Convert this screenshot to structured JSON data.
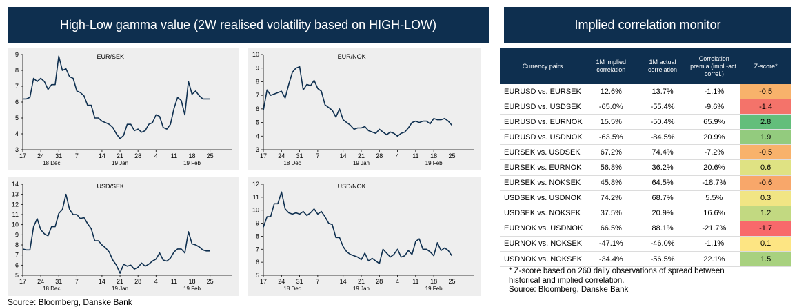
{
  "left_title": "High-Low gamma value (2W realised volatility based on HIGH-LOW)",
  "right_title": "Implied correlation monitor",
  "source_left": "Source: Bloomberg, Danske Bank",
  "footnote_line1": "* Z-score based on 260 daily observations of spread between",
  "footnote_line2": "historical and implied correlation.",
  "footnote_source": "Source: Bloomberg, Danske Bank",
  "table": {
    "headers": [
      "Currency pairs",
      "1M implied correlation",
      "1M actual correlation",
      "Correlation premia (impl.-act. correl.)",
      "Z-score*"
    ],
    "rows": [
      {
        "pair": "EURUSD vs. EURSEK",
        "implied": "12.6%",
        "actual": "13.7%",
        "premia": "-1.1%",
        "z": "-0.5",
        "zcolor": "#f8b26b"
      },
      {
        "pair": "EURUSD vs. USDSEK",
        "implied": "-65.0%",
        "actual": "-55.4%",
        "premia": "-9.6%",
        "z": "-1.4",
        "zcolor": "#f4736a"
      },
      {
        "pair": "EURUSD vs. EURNOK",
        "implied": "15.5%",
        "actual": "-50.4%",
        "premia": "65.9%",
        "z": "2.8",
        "zcolor": "#63be7b"
      },
      {
        "pair": "EURUSD vs. USDNOK",
        "implied": "-63.5%",
        "actual": "-84.5%",
        "premia": "20.9%",
        "z": "1.9",
        "zcolor": "#93cb7e"
      },
      {
        "pair": "EURSEK vs. USDSEK",
        "implied": "67.2%",
        "actual": "74.4%",
        "premia": "-7.2%",
        "z": "-0.5",
        "zcolor": "#f8b26b"
      },
      {
        "pair": "EURSEK vs. EURNOK",
        "implied": "56.8%",
        "actual": "36.2%",
        "premia": "20.6%",
        "z": "0.6",
        "zcolor": "#dfe283"
      },
      {
        "pair": "EURSEK vs. NOKSEK",
        "implied": "45.8%",
        "actual": "64.5%",
        "premia": "-18.7%",
        "z": "-0.6",
        "zcolor": "#f8a76a"
      },
      {
        "pair": "USDSEK vs. USDNOK",
        "implied": "74.2%",
        "actual": "68.7%",
        "premia": "5.5%",
        "z": "0.3",
        "zcolor": "#f1e584"
      },
      {
        "pair": "USDSEK vs. NOKSEK",
        "implied": "37.5%",
        "actual": "20.9%",
        "premia": "16.6%",
        "z": "1.2",
        "zcolor": "#c2d981"
      },
      {
        "pair": "EURNOK vs. USDNOK",
        "implied": "66.5%",
        "actual": "88.1%",
        "premia": "-21.7%",
        "z": "-1.7",
        "zcolor": "#f8696b"
      },
      {
        "pair": "EURNOK vs. NOKSEK",
        "implied": "-47.1%",
        "actual": "-46.0%",
        "premia": "-1.1%",
        "z": "0.1",
        "zcolor": "#fde583"
      },
      {
        "pair": "USDNOK vs. NOKSEK",
        "implied": "-34.4%",
        "actual": "-56.5%",
        "premia": "22.1%",
        "z": "1.5",
        "zcolor": "#a8d17f"
      }
    ]
  },
  "chart_data": [
    {
      "type": "line",
      "title": "EUR/SEK",
      "ylim": [
        3,
        9
      ],
      "yticks": [
        3,
        4,
        5,
        6,
        7,
        8,
        9
      ],
      "xlim": [
        0,
        58
      ],
      "xticks": [
        {
          "x": 0,
          "label": "17"
        },
        {
          "x": 5,
          "label": "24"
        },
        {
          "x": 10,
          "label": "31"
        },
        {
          "x": 15,
          "label": "7"
        },
        {
          "x": 22,
          "label": "14"
        },
        {
          "x": 27,
          "label": "21"
        },
        {
          "x": 32,
          "label": "28"
        },
        {
          "x": 37,
          "label": "4"
        },
        {
          "x": 42,
          "label": "11"
        },
        {
          "x": 47,
          "label": "18"
        },
        {
          "x": 52,
          "label": "25"
        }
      ],
      "months": [
        {
          "x": 8,
          "label": "18 Dec"
        },
        {
          "x": 27,
          "label": "19 Jan"
        },
        {
          "x": 47,
          "label": "19 Feb"
        }
      ],
      "series": [
        {
          "x": [
            0,
            1,
            2,
            3,
            4,
            5,
            6,
            7,
            8,
            9,
            10,
            11,
            12,
            13,
            14,
            15,
            16,
            17,
            18,
            19,
            20,
            21,
            22,
            23,
            24,
            25,
            26,
            27,
            28,
            29,
            30,
            31,
            32,
            33,
            34,
            35,
            36,
            37,
            38,
            39,
            40,
            41,
            42,
            43,
            44,
            45,
            46,
            47,
            48,
            49,
            50,
            51,
            52
          ],
          "y": [
            6.2,
            6.2,
            6.3,
            7.5,
            7.3,
            7.5,
            7.3,
            6.8,
            7.1,
            7.1,
            8.9,
            8.0,
            8.1,
            7.6,
            7.5,
            6.7,
            6.6,
            6.4,
            5.8,
            5.8,
            5.0,
            5.0,
            4.8,
            4.7,
            4.6,
            4.4,
            4.0,
            3.7,
            3.9,
            4.6,
            4.6,
            4.2,
            4.3,
            4.1,
            4.2,
            4.6,
            4.7,
            5.2,
            5.1,
            4.4,
            4.3,
            4.6,
            5.6,
            6.3,
            6.1,
            5.2,
            7.3,
            6.5,
            6.7,
            6.4,
            6.2,
            6.2,
            6.2
          ]
        }
      ]
    },
    {
      "type": "line",
      "title": "EUR/NOK",
      "ylim": [
        3,
        10
      ],
      "yticks": [
        3,
        4,
        5,
        6,
        7,
        8,
        9,
        10
      ],
      "xlim": [
        0,
        58
      ],
      "xticks": [
        {
          "x": 0,
          "label": "17"
        },
        {
          "x": 5,
          "label": "24"
        },
        {
          "x": 10,
          "label": "31"
        },
        {
          "x": 15,
          "label": "7"
        },
        {
          "x": 22,
          "label": "14"
        },
        {
          "x": 27,
          "label": "21"
        },
        {
          "x": 32,
          "label": "28"
        },
        {
          "x": 37,
          "label": "4"
        },
        {
          "x": 42,
          "label": "11"
        },
        {
          "x": 47,
          "label": "18"
        },
        {
          "x": 52,
          "label": "25"
        }
      ],
      "months": [
        {
          "x": 8,
          "label": "18 Dec"
        },
        {
          "x": 27,
          "label": "19 Jan"
        },
        {
          "x": 47,
          "label": "19 Feb"
        }
      ],
      "series": [
        {
          "x": [
            0,
            1,
            2,
            3,
            4,
            5,
            6,
            7,
            8,
            9,
            10,
            11,
            12,
            13,
            14,
            15,
            16,
            17,
            18,
            19,
            20,
            21,
            22,
            23,
            24,
            25,
            26,
            27,
            28,
            29,
            30,
            31,
            32,
            33,
            34,
            35,
            36,
            37,
            38,
            39,
            40,
            41,
            42,
            43,
            44,
            45,
            46,
            47,
            48,
            49,
            50,
            51,
            52
          ],
          "y": [
            5.9,
            7.4,
            7.0,
            7.1,
            7.2,
            7.3,
            6.8,
            7.8,
            8.7,
            9.0,
            9.1,
            7.4,
            7.8,
            7.7,
            8.1,
            7.5,
            7.3,
            6.3,
            6.1,
            5.9,
            5.4,
            6.0,
            5.2,
            5.0,
            4.8,
            4.5,
            4.6,
            4.6,
            4.7,
            4.4,
            4.3,
            4.2,
            4.5,
            4.3,
            4.1,
            4.3,
            4.2,
            4.0,
            4.2,
            4.3,
            4.6,
            5.0,
            5.1,
            5.0,
            5.1,
            5.1,
            4.9,
            5.3,
            5.2,
            5.2,
            5.3,
            5.1,
            4.8
          ]
        }
      ]
    },
    {
      "type": "line",
      "title": "USD/SEK",
      "ylim": [
        5,
        14
      ],
      "yticks": [
        5,
        6,
        7,
        8,
        9,
        10,
        11,
        12,
        13,
        14
      ],
      "xlim": [
        0,
        58
      ],
      "xticks": [
        {
          "x": 0,
          "label": "17"
        },
        {
          "x": 5,
          "label": "24"
        },
        {
          "x": 10,
          "label": "31"
        },
        {
          "x": 15,
          "label": "7"
        },
        {
          "x": 22,
          "label": "14"
        },
        {
          "x": 27,
          "label": "21"
        },
        {
          "x": 32,
          "label": "28"
        },
        {
          "x": 37,
          "label": "4"
        },
        {
          "x": 42,
          "label": "11"
        },
        {
          "x": 47,
          "label": "18"
        },
        {
          "x": 52,
          "label": "25"
        }
      ],
      "months": [
        {
          "x": 8,
          "label": "18 Dec"
        },
        {
          "x": 27,
          "label": "19 Jan"
        },
        {
          "x": 47,
          "label": "19 Feb"
        }
      ],
      "series": [
        {
          "x": [
            0,
            1,
            2,
            3,
            4,
            5,
            6,
            7,
            8,
            9,
            10,
            11,
            12,
            13,
            14,
            15,
            16,
            17,
            18,
            19,
            20,
            21,
            22,
            23,
            24,
            25,
            26,
            27,
            28,
            29,
            30,
            31,
            32,
            33,
            34,
            35,
            36,
            37,
            38,
            39,
            40,
            41,
            42,
            43,
            44,
            45,
            46,
            47,
            48,
            49,
            50,
            51,
            52
          ],
          "y": [
            7.6,
            7.5,
            7.5,
            9.8,
            10.6,
            9.5,
            9.1,
            8.9,
            9.8,
            9.8,
            11.1,
            11.5,
            13.0,
            11.5,
            11.0,
            11.0,
            10.6,
            10.7,
            10.1,
            9.6,
            8.4,
            8.4,
            8.0,
            7.7,
            7.3,
            6.5,
            6.0,
            5.2,
            6.1,
            5.9,
            6.0,
            5.6,
            5.8,
            6.2,
            5.9,
            6.1,
            6.4,
            6.6,
            7.2,
            6.5,
            6.4,
            6.7,
            7.3,
            7.6,
            7.6,
            7.2,
            9.3,
            8.1,
            8.0,
            7.8,
            7.5,
            7.4,
            7.4
          ]
        }
      ]
    },
    {
      "type": "line",
      "title": "USD/NOK",
      "ylim": [
        5,
        12
      ],
      "yticks": [
        5,
        6,
        7,
        8,
        9,
        10,
        11,
        12
      ],
      "xlim": [
        0,
        58
      ],
      "xticks": [
        {
          "x": 0,
          "label": "17"
        },
        {
          "x": 5,
          "label": "24"
        },
        {
          "x": 10,
          "label": "31"
        },
        {
          "x": 15,
          "label": "7"
        },
        {
          "x": 22,
          "label": "14"
        },
        {
          "x": 27,
          "label": "21"
        },
        {
          "x": 32,
          "label": "28"
        },
        {
          "x": 37,
          "label": "4"
        },
        {
          "x": 42,
          "label": "11"
        },
        {
          "x": 47,
          "label": "18"
        },
        {
          "x": 52,
          "label": "25"
        }
      ],
      "months": [
        {
          "x": 8,
          "label": "18 Dec"
        },
        {
          "x": 27,
          "label": "19 Jan"
        },
        {
          "x": 47,
          "label": "19 Feb"
        }
      ],
      "series": [
        {
          "x": [
            0,
            1,
            2,
            3,
            4,
            5,
            6,
            7,
            8,
            9,
            10,
            11,
            12,
            13,
            14,
            15,
            16,
            17,
            18,
            19,
            20,
            21,
            22,
            23,
            24,
            25,
            26,
            27,
            28,
            29,
            30,
            31,
            32,
            33,
            34,
            35,
            36,
            37,
            38,
            39,
            40,
            41,
            42,
            43,
            44,
            45,
            46,
            47,
            48,
            49,
            50,
            51,
            52
          ],
          "y": [
            8.7,
            9.5,
            9.5,
            10.5,
            10.5,
            11.4,
            10.1,
            9.8,
            9.7,
            9.8,
            9.7,
            9.9,
            9.6,
            9.8,
            10.1,
            9.7,
            9.9,
            9.5,
            9.0,
            8.9,
            7.9,
            7.9,
            7.2,
            6.8,
            6.6,
            6.5,
            6.4,
            6.2,
            6.7,
            6.1,
            6.3,
            6.1,
            5.9,
            7.0,
            6.7,
            6.4,
            6.6,
            7.0,
            6.4,
            6.5,
            6.9,
            6.6,
            7.6,
            7.8,
            7.0,
            7.0,
            6.8,
            6.5,
            7.5,
            6.9,
            7.1,
            6.9,
            6.5
          ]
        }
      ]
    }
  ]
}
